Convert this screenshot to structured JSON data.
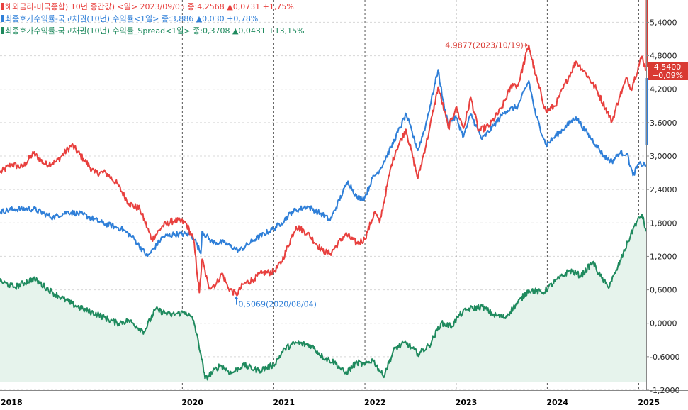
{
  "chart_data": {
    "type": "line",
    "x_range": [
      "2018-01-01",
      "2025-01-31"
    ],
    "y_range": [
      -1.2,
      5.8
    ],
    "y_ticks": [
      "5,4000",
      "4,8000",
      "4,2000",
      "3,6000",
      "3,0000",
      "2,4000",
      "1,8000",
      "1,2000",
      "0,6000",
      "0,0000",
      "-0,6000",
      "-1,2000"
    ],
    "y_tick_values": [
      5.4,
      4.8,
      4.2,
      3.6,
      3.0,
      2.4,
      1.8,
      1.2,
      0.6,
      0.0,
      -0.6,
      -1.2
    ],
    "x_ticks": [
      "2018",
      "2020",
      "2021",
      "2022",
      "2023",
      "2024",
      "2025"
    ],
    "x_tick_dates": [
      "2018-01-01",
      "2020-01-01",
      "2021-01-01",
      "2022-01-01",
      "2023-01-01",
      "2024-01-01",
      "2025-01-01"
    ],
    "grid": true,
    "series": [
      {
        "name": "해외금리-미국종합) 10년 중간값) <일> 2023/09/05 종:4,2568 ▲0,0731 +1,75%",
        "color": "#e8403e",
        "points": [
          [
            "2018-01-01",
            2.7
          ],
          [
            "2018-02-15",
            2.85
          ],
          [
            "2018-04-01",
            2.8
          ],
          [
            "2018-05-15",
            3.05
          ],
          [
            "2018-07-01",
            2.85
          ],
          [
            "2018-08-15",
            2.9
          ],
          [
            "2018-10-15",
            3.2
          ],
          [
            "2018-12-01",
            2.95
          ],
          [
            "2019-01-15",
            2.7
          ],
          [
            "2019-03-01",
            2.7
          ],
          [
            "2019-04-15",
            2.5
          ],
          [
            "2019-06-01",
            2.15
          ],
          [
            "2019-07-15",
            2.05
          ],
          [
            "2019-09-01",
            1.5
          ],
          [
            "2019-10-15",
            1.75
          ],
          [
            "2019-12-01",
            1.85
          ],
          [
            "2020-01-15",
            1.8
          ],
          [
            "2020-02-15",
            1.5
          ],
          [
            "2020-03-09",
            0.55
          ],
          [
            "2020-03-20",
            1.15
          ],
          [
            "2020-04-15",
            0.65
          ],
          [
            "2020-05-15",
            0.7
          ],
          [
            "2020-06-08",
            0.9
          ],
          [
            "2020-07-01",
            0.65
          ],
          [
            "2020-08-04",
            0.51
          ],
          [
            "2020-09-01",
            0.7
          ],
          [
            "2020-10-15",
            0.8
          ],
          [
            "2020-11-15",
            0.9
          ],
          [
            "2020-12-31",
            0.92
          ],
          [
            "2021-02-01",
            1.1
          ],
          [
            "2021-03-31",
            1.74
          ],
          [
            "2021-05-15",
            1.62
          ],
          [
            "2021-07-15",
            1.3
          ],
          [
            "2021-08-15",
            1.25
          ],
          [
            "2021-10-15",
            1.6
          ],
          [
            "2021-12-01",
            1.43
          ],
          [
            "2021-12-31",
            1.51
          ],
          [
            "2022-02-10",
            2.0
          ],
          [
            "2022-03-01",
            1.8
          ],
          [
            "2022-04-15",
            2.8
          ],
          [
            "2022-05-05",
            3.1
          ],
          [
            "2022-06-14",
            3.48
          ],
          [
            "2022-08-01",
            2.6
          ],
          [
            "2022-09-15",
            3.45
          ],
          [
            "2022-10-21",
            4.24
          ],
          [
            "2022-11-15",
            3.8
          ],
          [
            "2022-12-01",
            3.5
          ],
          [
            "2022-12-31",
            3.87
          ],
          [
            "2023-01-31",
            3.5
          ],
          [
            "2023-03-01",
            4.05
          ],
          [
            "2023-04-01",
            3.45
          ],
          [
            "2023-05-15",
            3.55
          ],
          [
            "2023-07-01",
            3.85
          ],
          [
            "2023-08-15",
            4.3
          ],
          [
            "2023-09-05",
            4.26
          ],
          [
            "2023-10-19",
            4.99
          ],
          [
            "2023-11-15",
            4.45
          ],
          [
            "2023-12-27",
            3.8
          ],
          [
            "2024-02-01",
            3.9
          ],
          [
            "2024-04-25",
            4.7
          ],
          [
            "2024-06-01",
            4.5
          ],
          [
            "2024-07-15",
            4.2
          ],
          [
            "2024-09-16",
            3.62
          ],
          [
            "2024-10-15",
            4.05
          ],
          [
            "2024-11-15",
            4.4
          ],
          [
            "2024-12-01",
            4.2
          ],
          [
            "2025-01-14",
            4.79
          ],
          [
            "2025-01-31",
            4.54
          ]
        ]
      },
      {
        "name": "최종호가수익률-국고채권(10년) 수익률<1일> 종:3,886 ▲0,030 +0,78%",
        "color": "#2f7fd8",
        "points": [
          [
            "2018-01-01",
            2.0
          ],
          [
            "2018-03-01",
            2.05
          ],
          [
            "2018-05-15",
            2.05
          ],
          [
            "2018-08-01",
            1.9
          ],
          [
            "2018-10-01",
            2.0
          ],
          [
            "2018-12-01",
            1.95
          ],
          [
            "2019-02-15",
            1.8
          ],
          [
            "2019-05-01",
            1.7
          ],
          [
            "2019-06-15",
            1.55
          ],
          [
            "2019-08-15",
            1.2
          ],
          [
            "2019-10-15",
            1.55
          ],
          [
            "2019-12-01",
            1.6
          ],
          [
            "2020-01-31",
            1.6
          ],
          [
            "2020-02-20",
            1.5
          ],
          [
            "2020-03-15",
            1.25
          ],
          [
            "2020-03-20",
            1.65
          ],
          [
            "2020-05-01",
            1.45
          ],
          [
            "2020-06-15",
            1.45
          ],
          [
            "2020-08-15",
            1.3
          ],
          [
            "2020-10-15",
            1.5
          ],
          [
            "2020-12-31",
            1.7
          ],
          [
            "2021-02-01",
            1.8
          ],
          [
            "2021-03-15",
            2.0
          ],
          [
            "2021-05-15",
            2.1
          ],
          [
            "2021-07-15",
            1.95
          ],
          [
            "2021-08-15",
            1.85
          ],
          [
            "2021-10-25",
            2.55
          ],
          [
            "2021-12-01",
            2.25
          ],
          [
            "2021-12-31",
            2.25
          ],
          [
            "2022-01-31",
            2.6
          ],
          [
            "2022-03-01",
            2.75
          ],
          [
            "2022-04-15",
            3.15
          ],
          [
            "2022-06-15",
            3.75
          ],
          [
            "2022-08-01",
            3.1
          ],
          [
            "2022-09-01",
            3.55
          ],
          [
            "2022-10-21",
            4.55
          ],
          [
            "2022-11-15",
            3.85
          ],
          [
            "2022-12-01",
            3.6
          ],
          [
            "2022-12-31",
            3.7
          ],
          [
            "2023-01-31",
            3.35
          ],
          [
            "2023-03-01",
            3.75
          ],
          [
            "2023-04-15",
            3.3
          ],
          [
            "2023-06-01",
            3.55
          ],
          [
            "2023-07-15",
            3.8
          ],
          [
            "2023-09-05",
            3.89
          ],
          [
            "2023-10-19",
            4.35
          ],
          [
            "2023-11-15",
            3.75
          ],
          [
            "2023-12-27",
            3.2
          ],
          [
            "2024-02-01",
            3.35
          ],
          [
            "2024-04-25",
            3.7
          ],
          [
            "2024-06-01",
            3.45
          ],
          [
            "2024-07-15",
            3.2
          ],
          [
            "2024-08-15",
            3.0
          ],
          [
            "2024-09-16",
            2.9
          ],
          [
            "2024-10-15",
            3.05
          ],
          [
            "2024-11-15",
            3.05
          ],
          [
            "2024-12-09",
            2.65
          ],
          [
            "2024-12-31",
            2.85
          ],
          [
            "2025-01-31",
            2.85
          ]
        ]
      },
      {
        "name": "최종호가수익률-국고채권(10년) 수익률_Spread<1일> 종:0,3708 ▲0,0431 +13,15%",
        "color": "#1f8a5e",
        "fill": "#e6f3ec",
        "points": [
          [
            "2018-01-01",
            0.75
          ],
          [
            "2018-03-01",
            0.65
          ],
          [
            "2018-05-15",
            0.8
          ],
          [
            "2018-08-01",
            0.55
          ],
          [
            "2018-10-15",
            0.35
          ],
          [
            "2018-12-01",
            0.25
          ],
          [
            "2019-02-01",
            0.15
          ],
          [
            "2019-04-15",
            0.0
          ],
          [
            "2019-06-01",
            0.05
          ],
          [
            "2019-08-01",
            -0.15
          ],
          [
            "2019-09-15",
            0.25
          ],
          [
            "2019-11-15",
            0.15
          ],
          [
            "2020-01-15",
            0.2
          ],
          [
            "2020-02-15",
            0.05
          ],
          [
            "2020-03-15",
            -0.55
          ],
          [
            "2020-04-01",
            -1.0
          ],
          [
            "2020-06-01",
            -0.75
          ],
          [
            "2020-07-15",
            -0.9
          ],
          [
            "2020-09-01",
            -0.75
          ],
          [
            "2020-11-01",
            -0.85
          ],
          [
            "2020-12-31",
            -0.75
          ],
          [
            "2021-02-15",
            -0.45
          ],
          [
            "2021-04-01",
            -0.35
          ],
          [
            "2021-06-01",
            -0.4
          ],
          [
            "2021-07-15",
            -0.6
          ],
          [
            "2021-09-01",
            -0.7
          ],
          [
            "2021-10-15",
            -0.9
          ],
          [
            "2021-12-01",
            -0.7
          ],
          [
            "2021-12-31",
            -0.75
          ],
          [
            "2022-02-01",
            -0.65
          ],
          [
            "2022-03-15",
            -0.95
          ],
          [
            "2022-05-01",
            -0.45
          ],
          [
            "2022-06-15",
            -0.35
          ],
          [
            "2022-08-01",
            -0.55
          ],
          [
            "2022-09-15",
            -0.4
          ],
          [
            "2022-11-01",
            0.0
          ],
          [
            "2022-12-15",
            -0.05
          ],
          [
            "2023-01-15",
            0.15
          ],
          [
            "2023-02-15",
            0.25
          ],
          [
            "2023-04-15",
            0.3
          ],
          [
            "2023-06-01",
            0.15
          ],
          [
            "2023-07-15",
            0.1
          ],
          [
            "2023-09-05",
            0.37
          ],
          [
            "2023-10-19",
            0.6
          ],
          [
            "2023-12-15",
            0.55
          ],
          [
            "2024-02-01",
            0.75
          ],
          [
            "2024-04-01",
            0.95
          ],
          [
            "2024-05-15",
            0.85
          ],
          [
            "2024-07-01",
            1.1
          ],
          [
            "2024-07-31",
            0.85
          ],
          [
            "2024-08-31",
            0.65
          ],
          [
            "2024-09-30",
            0.9
          ],
          [
            "2024-10-31",
            1.25
          ],
          [
            "2024-12-15",
            1.75
          ],
          [
            "2025-01-14",
            1.95
          ],
          [
            "2025-01-31",
            1.65
          ]
        ]
      }
    ],
    "annotations": {
      "max_label": "4,9877(2023/10/19)",
      "max_point": [
        "2023-10-19",
        4.99
      ],
      "min_label": "0,5069(2020/08/04)",
      "min_point": [
        "2020-08-04",
        0.51
      ]
    },
    "last_value_box": {
      "value": "4,5400",
      "change": "+0,09%",
      "y": 4.54,
      "color": "#d93a33"
    }
  }
}
